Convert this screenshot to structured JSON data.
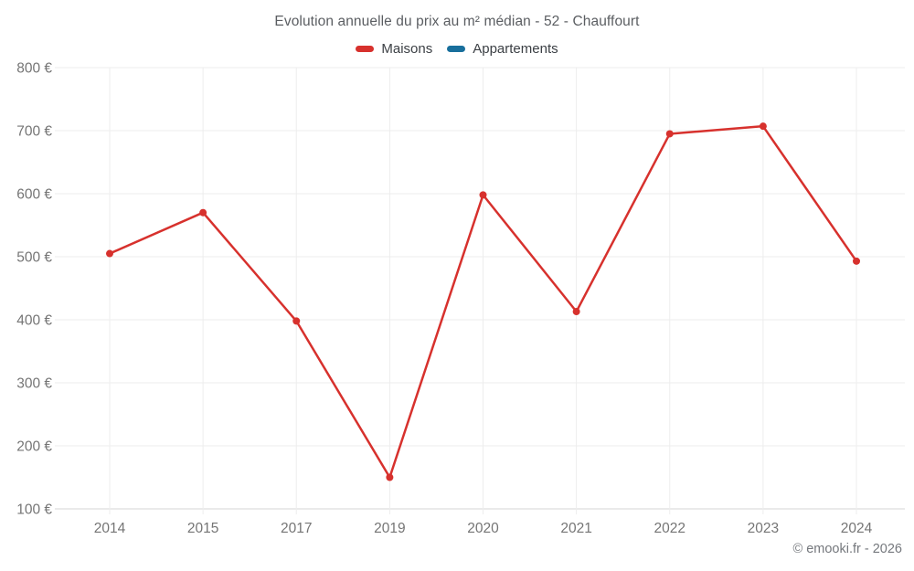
{
  "title": "Evolution annuelle du prix au m² médian - 52 - Chauffourt",
  "legend": {
    "items": [
      {
        "label": "Maisons",
        "color": "#d7312d"
      },
      {
        "label": "Appartements",
        "color": "#186f9c"
      }
    ]
  },
  "footer": {
    "credit": "© emooki.fr - 2026"
  },
  "chart_data": {
    "type": "line",
    "title": "Evolution annuelle du prix au m² médian - 52 - Chauffourt",
    "categories": [
      "2014",
      "2015",
      "2017",
      "2019",
      "2020",
      "2021",
      "2022",
      "2023",
      "2024"
    ],
    "series": [
      {
        "name": "Maisons",
        "color": "#d7312d",
        "values": [
          505,
          570,
          398,
          150,
          598,
          413,
          695,
          707,
          493
        ]
      },
      {
        "name": "Appartements",
        "color": "#186f9c",
        "values": []
      }
    ],
    "xlabel": "",
    "ylabel": "",
    "ylim": [
      100,
      800
    ],
    "ytick_step": 100,
    "ytick_labels": [
      "100 €",
      "200 €",
      "300 €",
      "400 €",
      "500 €",
      "600 €",
      "700 €",
      "800 €"
    ],
    "grid": true,
    "legend_position": "top",
    "colors": {
      "grid": "#ededed",
      "axis": "#d6d6d6",
      "tick_text": "#757575"
    }
  }
}
